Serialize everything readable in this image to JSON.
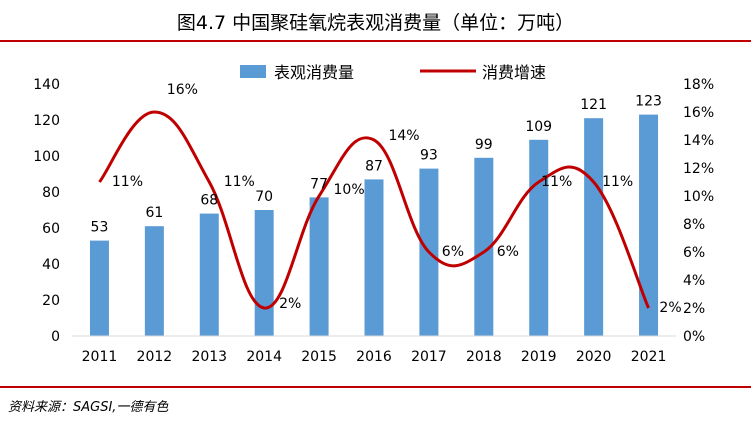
{
  "header": {
    "title": "图4.7  中国聚硅氧烷表观消费量（单位：万吨）"
  },
  "footer": {
    "source": "资料来源：SAGSI,一德有色"
  },
  "chart_data": {
    "type": "bar",
    "title": "图4.7  中国聚硅氧烷表观消费量（单位：万吨）",
    "categories": [
      "2011",
      "2012",
      "2013",
      "2014",
      "2015",
      "2016",
      "2017",
      "2018",
      "2019",
      "2020",
      "2021"
    ],
    "series": [
      {
        "name": "表观消费量",
        "type": "bar",
        "axis": "left",
        "values": [
          53,
          61,
          68,
          70,
          77,
          87,
          93,
          99,
          109,
          121,
          123
        ],
        "labels": [
          "53",
          "61",
          "68",
          "70",
          "77",
          "87",
          "93",
          "99",
          "109",
          "121",
          "123"
        ],
        "color": "#5b9bd5"
      },
      {
        "name": "消费增速",
        "type": "line",
        "axis": "right",
        "values": [
          11,
          16,
          11,
          2,
          10,
          14,
          6,
          6,
          11,
          11,
          2
        ],
        "labels": [
          "11%",
          "16%",
          "11%",
          "2%",
          "10%",
          "14%",
          "6%",
          "6%",
          "11%",
          "11%",
          "2%"
        ],
        "color": "#c00000"
      }
    ],
    "y_left": {
      "min": 0,
      "max": 140,
      "ticks": [
        "0",
        "20",
        "40",
        "60",
        "80",
        "100",
        "120",
        "140"
      ]
    },
    "y_right": {
      "min": 0,
      "max": 18,
      "unit": "%",
      "ticks": [
        "0%",
        "2%",
        "4%",
        "6%",
        "8%",
        "10%",
        "12%",
        "14%",
        "16%",
        "18%"
      ]
    },
    "legend": {
      "position": "top"
    },
    "grid": false
  }
}
